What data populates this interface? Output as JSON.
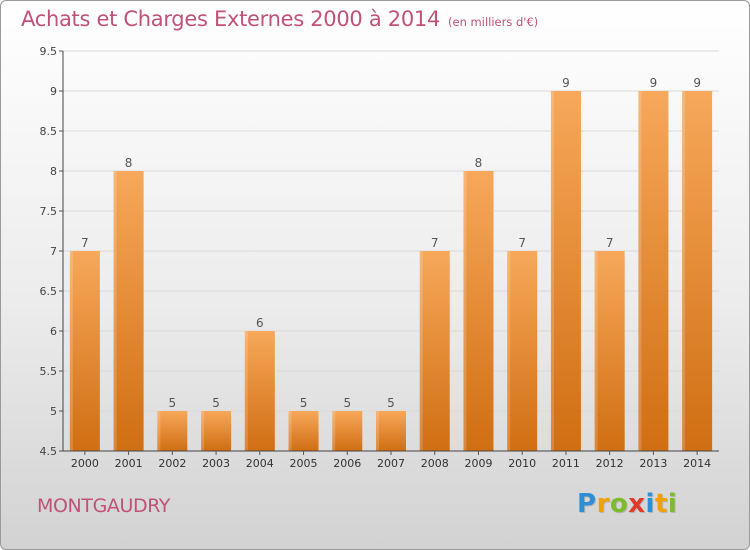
{
  "header": {
    "title": "Achats et Charges Externes 2000 à 2014",
    "unit": "(en milliers d'€)"
  },
  "footer": {
    "place": "MONTGAUDRY",
    "brand": {
      "letters": [
        "P",
        "r",
        "o",
        "x",
        "i",
        "t",
        "i"
      ],
      "colors": [
        "#2e8fd6",
        "#f2a100",
        "#7dbb2c",
        "#e03a2a",
        "#2e8fd6",
        "#f2a100",
        "#7dbb2c"
      ]
    }
  },
  "colors": {
    "bar_top": "#f7a85a",
    "bar_bottom": "#d06e12",
    "title": "#c0527a",
    "grid": "#d9d9d9"
  },
  "chart_data": {
    "type": "bar",
    "title": "Achats et Charges Externes 2000 à 2014",
    "categories": [
      "2000",
      "2001",
      "2002",
      "2003",
      "2004",
      "2005",
      "2006",
      "2007",
      "2008",
      "2009",
      "2010",
      "2011",
      "2012",
      "2013",
      "2014"
    ],
    "values": [
      7,
      8,
      5,
      5,
      6,
      5,
      5,
      5,
      7,
      8,
      7,
      9,
      7,
      9,
      9
    ],
    "data_labels": [
      "7",
      "8",
      "5",
      "5",
      "6",
      "5",
      "5",
      "5",
      "7",
      "8",
      "7",
      "9",
      "7",
      "9",
      "9"
    ],
    "ylim": [
      4.5,
      9.5
    ],
    "yticks": [
      4.5,
      5,
      5.5,
      6,
      6.5,
      7,
      7.5,
      8,
      8.5,
      9,
      9.5
    ],
    "ytick_labels": [
      "4.5",
      "5",
      "5.5",
      "6",
      "6.5",
      "7",
      "7.5",
      "8",
      "8.5",
      "9",
      "9.5"
    ],
    "grid": true,
    "legend": "none"
  }
}
